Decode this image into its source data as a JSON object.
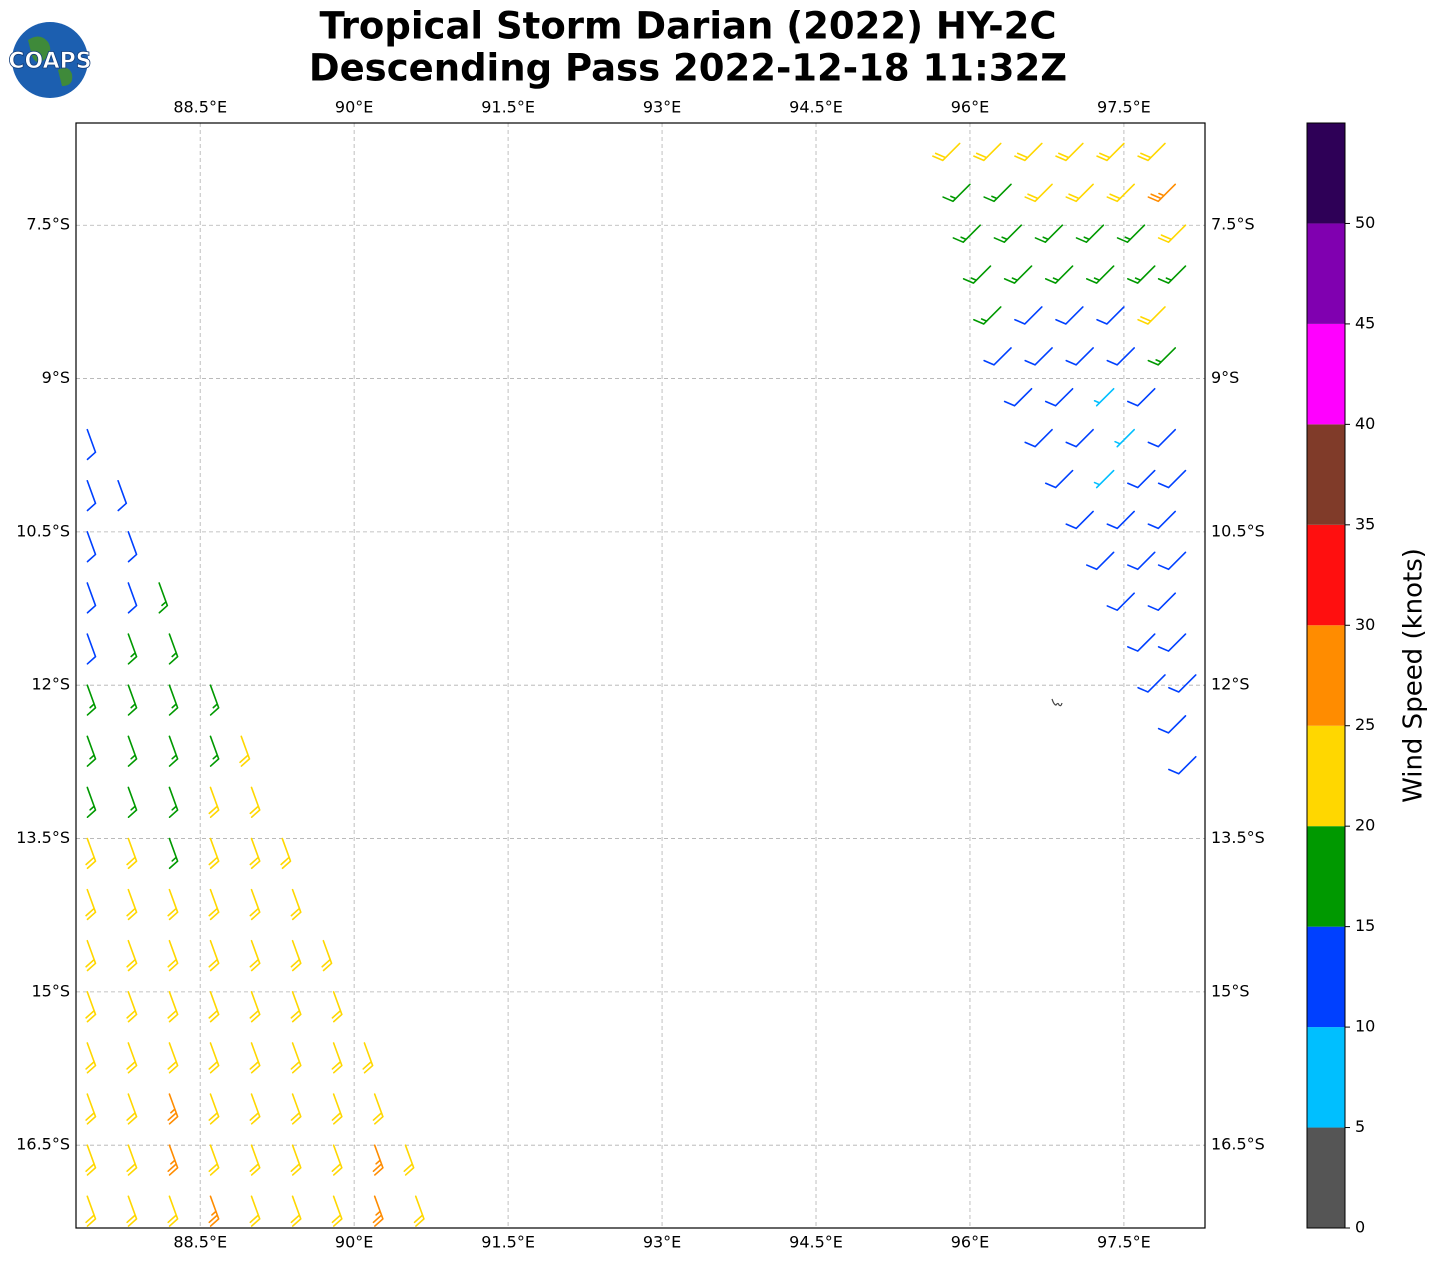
{
  "chart_data": {
    "type": "map",
    "title": [
      "Tropical Storm Darian (2022) HY-2C",
      "Descending Pass 2022-12-18 11:32Z"
    ],
    "logo": "COAPS",
    "xlim": [
      87.29,
      98.29
    ],
    "ylim": [
      -17.31,
      -6.5
    ],
    "grid": true,
    "xticks": [
      {
        "value": 88.5,
        "label": "88.5°E"
      },
      {
        "value": 90,
        "label": "90°E"
      },
      {
        "value": 91.5,
        "label": "91.5°E"
      },
      {
        "value": 93,
        "label": "93°E"
      },
      {
        "value": 94.5,
        "label": "94.5°E"
      },
      {
        "value": 96,
        "label": "96°E"
      },
      {
        "value": 97.5,
        "label": "97.5°E"
      }
    ],
    "yticks": [
      {
        "value": -7.5,
        "label": "7.5°S"
      },
      {
        "value": -9,
        "label": "9°S"
      },
      {
        "value": -10.5,
        "label": "10.5°S"
      },
      {
        "value": -12,
        "label": "12°S"
      },
      {
        "value": -13.5,
        "label": "13.5°S"
      },
      {
        "value": -15,
        "label": "15°S"
      },
      {
        "value": -16.5,
        "label": "16.5°S"
      }
    ],
    "colorbar": {
      "label": "Wind Speed (knots)",
      "levels": [
        0,
        5,
        10,
        15,
        20,
        25,
        30,
        35,
        40,
        45,
        50,
        55
      ],
      "colors": [
        "#555555",
        "#00bfff",
        "#0040ff",
        "#009900",
        "#ffd700",
        "#ff8c00",
        "#ff0f0f",
        "#803b29",
        "#ff00ff",
        "#8000b0",
        "#2e0057"
      ],
      "ticks": [
        0,
        5,
        10,
        15,
        20,
        25,
        30,
        35,
        40,
        45,
        50
      ]
    },
    "swaths": [
      {
        "direction": 160,
        "rows": [
          {
            "lat": -9.5,
            "lon": [
              87.4
            ],
            "speed": [
              12
            ]
          },
          {
            "lat": -10.0,
            "lon": [
              87.4,
              87.7
            ],
            "speed": [
              12,
              12
            ]
          },
          {
            "lat": -10.5,
            "lon": [
              87.4,
              87.8
            ],
            "speed": [
              12,
              12
            ]
          },
          {
            "lat": -11.0,
            "lon": [
              87.4,
              87.8,
              88.1
            ],
            "speed": [
              12,
              12,
              17
            ]
          },
          {
            "lat": -11.5,
            "lon": [
              87.4,
              87.8,
              88.2
            ],
            "speed": [
              12,
              17,
              17
            ]
          },
          {
            "lat": -12.0,
            "lon": [
              87.4,
              87.8,
              88.2,
              88.6
            ],
            "speed": [
              17,
              17,
              17,
              17
            ]
          },
          {
            "lat": -12.5,
            "lon": [
              87.4,
              87.8,
              88.2,
              88.6,
              88.9
            ],
            "speed": [
              17,
              17,
              17,
              17,
              22
            ]
          },
          {
            "lat": -13.0,
            "lon": [
              87.4,
              87.8,
              88.2,
              88.6,
              89.0
            ],
            "speed": [
              17,
              17,
              17,
              22,
              22
            ]
          },
          {
            "lat": -13.5,
            "lon": [
              87.4,
              87.8,
              88.2,
              88.6,
              89.0,
              89.3
            ],
            "speed": [
              22,
              22,
              17,
              22,
              22,
              22
            ]
          },
          {
            "lat": -14.0,
            "lon": [
              87.4,
              87.8,
              88.2,
              88.6,
              89.0,
              89.4
            ],
            "speed": [
              22,
              22,
              22,
              22,
              22,
              22
            ]
          },
          {
            "lat": -14.5,
            "lon": [
              87.4,
              87.8,
              88.2,
              88.6,
              89.0,
              89.4,
              89.7
            ],
            "speed": [
              22,
              22,
              22,
              22,
              22,
              22,
              22
            ]
          },
          {
            "lat": -15.0,
            "lon": [
              87.4,
              87.8,
              88.2,
              88.6,
              89.0,
              89.4,
              89.8
            ],
            "speed": [
              22,
              22,
              22,
              22,
              22,
              22,
              22
            ]
          },
          {
            "lat": -15.5,
            "lon": [
              87.4,
              87.8,
              88.2,
              88.6,
              89.0,
              89.4,
              89.8,
              90.1
            ],
            "speed": [
              22,
              22,
              22,
              22,
              22,
              22,
              22,
              22
            ]
          },
          {
            "lat": -16.0,
            "lon": [
              87.4,
              87.8,
              88.2,
              88.6,
              89.0,
              89.4,
              89.8,
              90.2
            ],
            "speed": [
              22,
              22,
              27,
              22,
              22,
              22,
              22,
              22
            ]
          },
          {
            "lat": -16.5,
            "lon": [
              87.4,
              87.8,
              88.2,
              88.6,
              89.0,
              89.4,
              89.8,
              90.2,
              90.5
            ],
            "speed": [
              22,
              22,
              27,
              22,
              22,
              22,
              22,
              27,
              22
            ]
          },
          {
            "lat": -17.0,
            "lon": [
              87.4,
              87.8,
              88.2,
              88.6,
              89.0,
              89.4,
              89.8,
              90.2,
              90.6
            ],
            "speed": [
              22,
              22,
              22,
              27,
              22,
              22,
              22,
              27,
              22
            ]
          }
        ]
      },
      {
        "direction": 225,
        "rows": [
          {
            "lat": -6.7,
            "lon": [
              95.9,
              96.3,
              96.7,
              97.1,
              97.5,
              97.9
            ],
            "speed": [
              22,
              22,
              22,
              22,
              22,
              22
            ]
          },
          {
            "lat": -7.1,
            "lon": [
              96.0,
              96.4,
              96.8,
              97.2,
              97.6,
              98.0
            ],
            "speed": [
              17,
              17,
              22,
              22,
              22,
              27
            ]
          },
          {
            "lat": -7.5,
            "lon": [
              96.1,
              96.5,
              96.9,
              97.3,
              97.7,
              98.1
            ],
            "speed": [
              17,
              17,
              17,
              17,
              17,
              22
            ]
          },
          {
            "lat": -7.9,
            "lon": [
              96.2,
              96.6,
              97.0,
              97.4,
              97.8,
              98.1
            ],
            "speed": [
              17,
              17,
              17,
              17,
              17,
              17
            ]
          },
          {
            "lat": -8.3,
            "lon": [
              96.3,
              96.7,
              97.1,
              97.5,
              97.9
            ],
            "speed": [
              17,
              12,
              12,
              12,
              22
            ]
          },
          {
            "lat": -8.7,
            "lon": [
              96.4,
              96.8,
              97.2,
              97.6,
              98.0
            ],
            "speed": [
              12,
              12,
              12,
              12,
              17
            ]
          },
          {
            "lat": -9.1,
            "lon": [
              96.6,
              97.0,
              97.4,
              97.8
            ],
            "speed": [
              12,
              12,
              7,
              12
            ]
          },
          {
            "lat": -9.5,
            "lon": [
              96.8,
              97.2,
              97.6,
              98.0
            ],
            "speed": [
              12,
              12,
              7,
              12
            ]
          },
          {
            "lat": -9.9,
            "lon": [
              97.0,
              97.4,
              97.8,
              98.1
            ],
            "speed": [
              12,
              7,
              12,
              12
            ]
          },
          {
            "lat": -10.3,
            "lon": [
              97.2,
              97.6,
              98.0
            ],
            "speed": [
              12,
              12,
              12
            ]
          },
          {
            "lat": -10.7,
            "lon": [
              97.4,
              97.8,
              98.1
            ],
            "speed": [
              12,
              12,
              12
            ]
          },
          {
            "lat": -11.1,
            "lon": [
              97.6,
              98.0
            ],
            "speed": [
              12,
              12
            ]
          },
          {
            "lat": -11.5,
            "lon": [
              97.8,
              98.1
            ],
            "speed": [
              12,
              12
            ]
          },
          {
            "lat": -11.9,
            "lon": [
              97.9,
              98.2
            ],
            "speed": [
              12,
              12
            ]
          },
          {
            "lat": -12.3,
            "lon": [
              98.1
            ],
            "speed": [
              12
            ]
          },
          {
            "lat": -12.7,
            "lon": [
              98.2
            ],
            "speed": [
              12
            ]
          }
        ]
      }
    ]
  }
}
